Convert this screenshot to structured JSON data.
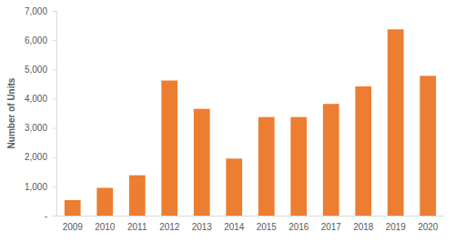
{
  "chart_data": {
    "type": "bar",
    "y_label": "Number of Units",
    "categories": [
      "2009",
      "2010",
      "2011",
      "2012",
      "2013",
      "2014",
      "2015",
      "2016",
      "2017",
      "2018",
      "2019",
      "2020"
    ],
    "values": [
      530,
      950,
      1380,
      4620,
      3650,
      1950,
      3370,
      3370,
      3820,
      4420,
      6370,
      4780
    ],
    "color": "#ed7d31",
    "ylim": [
      0,
      7000
    ],
    "yticks": [
      {
        "value": 0,
        "label": "-"
      },
      {
        "value": 1000,
        "label": "1,000"
      },
      {
        "value": 2000,
        "label": "2,000"
      },
      {
        "value": 3000,
        "label": "3,000"
      },
      {
        "value": 4000,
        "label": "4,000"
      },
      {
        "value": 5000,
        "label": "5,000"
      },
      {
        "value": 6000,
        "label": "6,000"
      },
      {
        "value": 7000,
        "label": "7,000"
      }
    ],
    "grid": false
  }
}
